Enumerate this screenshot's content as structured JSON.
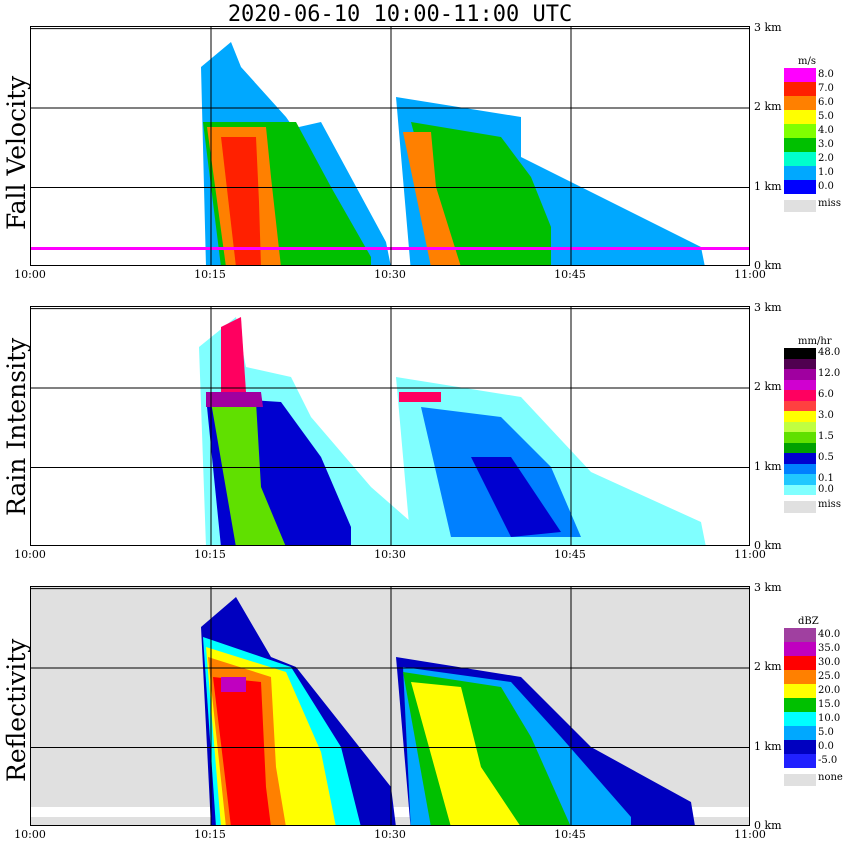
{
  "title": "2020-06-10   10:00-11:00 UTC",
  "x_ticks": [
    "10:00",
    "10:15",
    "10:30",
    "10:45",
    "11:00"
  ],
  "y_ticks": [
    "0 km",
    "1 km",
    "2 km",
    "3 km"
  ],
  "chart_data": [
    {
      "type": "heatmap",
      "title": "Fall Velocity",
      "ylabel": "Fall Velocity",
      "x_range": [
        "10:00",
        "11:00"
      ],
      "y_range_km": [
        0,
        3
      ],
      "unit": "m/s",
      "legend_levels": [
        "8.0",
        "7.0",
        "6.0",
        "5.0",
        "4.0",
        "3.0",
        "2.0",
        "1.0",
        "0.0"
      ],
      "legend_colors": [
        "#ff00ff",
        "#ff2000",
        "#ff8000",
        "#ffff00",
        "#80ff00",
        "#00c000",
        "#00ffcc",
        "#00a8ff",
        "#0000ff"
      ],
      "missing_label": "miss",
      "missing_color": "#e0e0e0"
    },
    {
      "type": "heatmap",
      "title": "Rain Intensity",
      "ylabel": "Rain Intensity",
      "x_range": [
        "10:00",
        "11:00"
      ],
      "y_range_km": [
        0,
        3
      ],
      "unit": "mm/hr",
      "legend_levels": [
        "48.0",
        "",
        "12.0",
        "",
        "6.0",
        "",
        "3.0",
        "",
        "1.5",
        "",
        "0.5",
        "",
        "0.1",
        "0.0"
      ],
      "legend_colors": [
        "#000000",
        "#500050",
        "#a000a0",
        "#d000d0",
        "#ff0060",
        "#ff4040",
        "#ffff00",
        "#c0ff40",
        "#60e000",
        "#00a000",
        "#0000d0",
        "#0080ff",
        "#20c8ff",
        "#80ffff"
      ],
      "missing_label": "miss",
      "missing_color": "#e0e0e0"
    },
    {
      "type": "heatmap",
      "title": "Reflectivity",
      "ylabel": "Reflectivity",
      "x_range": [
        "10:00",
        "11:00"
      ],
      "y_range_km": [
        0,
        3
      ],
      "unit": "dBZ",
      "legend_levels": [
        "40.0",
        "35.0",
        "30.0",
        "25.0",
        "20.0",
        "15.0",
        "10.0",
        "5.0",
        "0.0",
        "-5.0"
      ],
      "legend_colors": [
        "#a040a0",
        "#c000c0",
        "#ff0000",
        "#ff8000",
        "#ffff00",
        "#00c000",
        "#00ffff",
        "#00a8ff",
        "#0000c0",
        "#2020ff"
      ],
      "missing_label": "none",
      "missing_color": "#e0e0e0"
    }
  ]
}
